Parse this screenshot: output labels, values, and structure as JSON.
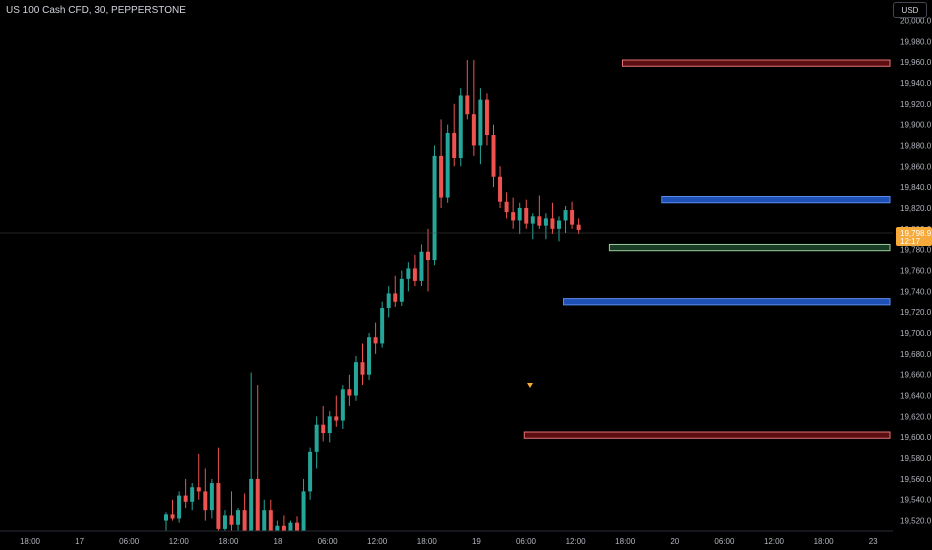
{
  "header": {
    "title": "US 100 Cash CFD, 30, PEPPERSTONE",
    "currency": "USD"
  },
  "colors": {
    "background": "#000000",
    "up": "#26a69a",
    "down": "#ef5350",
    "axis_text": "#b2b5be",
    "red_zone_fill": "#5c0f12",
    "red_zone_border": "#e57373",
    "blue_zone_fill": "#1e4fb4",
    "blue_zone_border": "#5b8def",
    "green_zone_fill": "#183d24",
    "green_zone_border": "#9ccc9e",
    "price_badge": "#f7a93a"
  },
  "price_badge": {
    "price": "19,798.9",
    "countdown": "12:17"
  },
  "chart_data": {
    "type": "candlestick",
    "title": "US 100 Cash CFD, 30, PEPPERSTONE",
    "ylim": [
      19510,
      20010
    ],
    "y_ticks": [
      "19,520.0",
      "19,540.0",
      "19,560.0",
      "19,580.0",
      "19,600.0",
      "19,620.0",
      "19,640.0",
      "19,660.0",
      "19,680.0",
      "19,700.0",
      "19,720.0",
      "19,740.0",
      "19,760.0",
      "19,780.0",
      "19,800.0",
      "19,820.0",
      "19,840.0",
      "19,860.0",
      "19,880.0",
      "19,900.0",
      "19,920.0",
      "19,940.0",
      "19,960.0",
      "19,980.0",
      "20,000.0"
    ],
    "x_ticks": [
      "18:00",
      "17",
      "06:00",
      "12:00",
      "18:00",
      "18",
      "06:00",
      "12:00",
      "18:00",
      "19",
      "06:00",
      "12:00",
      "18:00",
      "20",
      "06:00",
      "12:00",
      "18:00",
      "23"
    ],
    "last_price": 19798.9,
    "zones": [
      {
        "kind": "red",
        "from_bar": 70,
        "to_bar": 118,
        "top": 19962,
        "bottom": 19956
      },
      {
        "kind": "blue",
        "from_bar": 76,
        "to_bar": 118,
        "top": 19831,
        "bottom": 19825
      },
      {
        "kind": "green",
        "from_bar": 68,
        "to_bar": 118,
        "top": 19785,
        "bottom": 19779
      },
      {
        "kind": "blue",
        "from_bar": 61,
        "to_bar": 118,
        "top": 19733,
        "bottom": 19727
      },
      {
        "kind": "red",
        "from_bar": 55,
        "to_bar": 118,
        "top": 19605,
        "bottom": 19599
      }
    ],
    "candles": [
      [
        19520,
        19528,
        19510,
        19526
      ],
      [
        19526,
        19540,
        19520,
        19522
      ],
      [
        19522,
        19548,
        19518,
        19544
      ],
      [
        19544,
        19560,
        19532,
        19538
      ],
      [
        19538,
        19556,
        19530,
        19552
      ],
      [
        19552,
        19584,
        19540,
        19548
      ],
      [
        19548,
        19570,
        19520,
        19530
      ],
      [
        19530,
        19560,
        19522,
        19556
      ],
      [
        19556,
        19590,
        19500,
        19512
      ],
      [
        19512,
        19530,
        19500,
        19525
      ],
      [
        19525,
        19548,
        19510,
        19516
      ],
      [
        19516,
        19532,
        19508,
        19530
      ],
      [
        19530,
        19546,
        19500,
        19505
      ],
      [
        19505,
        19662,
        19500,
        19560
      ],
      [
        19560,
        19650,
        19500,
        19508
      ],
      [
        19508,
        19540,
        19500,
        19530
      ],
      [
        19530,
        19540,
        19500,
        19510
      ],
      [
        19510,
        19520,
        19500,
        19515
      ],
      [
        19515,
        19525,
        19500,
        19505
      ],
      [
        19505,
        19520,
        19500,
        19518
      ],
      [
        19518,
        19524,
        19500,
        19510
      ],
      [
        19510,
        19560,
        19505,
        19548
      ],
      [
        19548,
        19590,
        19540,
        19586
      ],
      [
        19586,
        19620,
        19570,
        19612
      ],
      [
        19612,
        19630,
        19596,
        19604
      ],
      [
        19604,
        19625,
        19595,
        19620
      ],
      [
        19620,
        19640,
        19610,
        19616
      ],
      [
        19616,
        19650,
        19608,
        19646
      ],
      [
        19646,
        19660,
        19630,
        19640
      ],
      [
        19640,
        19678,
        19635,
        19672
      ],
      [
        19672,
        19690,
        19650,
        19660
      ],
      [
        19660,
        19700,
        19655,
        19696
      ],
      [
        19696,
        19710,
        19680,
        19690
      ],
      [
        19690,
        19730,
        19686,
        19724
      ],
      [
        19724,
        19745,
        19715,
        19738
      ],
      [
        19738,
        19755,
        19725,
        19730
      ],
      [
        19730,
        19760,
        19726,
        19752
      ],
      [
        19752,
        19768,
        19740,
        19762
      ],
      [
        19762,
        19775,
        19745,
        19750
      ],
      [
        19750,
        19785,
        19745,
        19778
      ],
      [
        19778,
        19800,
        19740,
        19770
      ],
      [
        19770,
        19880,
        19765,
        19870
      ],
      [
        19870,
        19905,
        19820,
        19830
      ],
      [
        19830,
        19900,
        19825,
        19892
      ],
      [
        19892,
        19920,
        19860,
        19868
      ],
      [
        19868,
        19935,
        19860,
        19928
      ],
      [
        19928,
        19962,
        19905,
        19910
      ],
      [
        19910,
        19962,
        19870,
        19880
      ],
      [
        19880,
        19935,
        19862,
        19924
      ],
      [
        19924,
        19930,
        19880,
        19890
      ],
      [
        19890,
        19900,
        19840,
        19850
      ],
      [
        19850,
        19860,
        19820,
        19826
      ],
      [
        19826,
        19835,
        19810,
        19816
      ],
      [
        19816,
        19830,
        19800,
        19808
      ],
      [
        19808,
        19825,
        19795,
        19820
      ],
      [
        19820,
        19828,
        19800,
        19805
      ],
      [
        19805,
        19815,
        19790,
        19812
      ],
      [
        19812,
        19832,
        19800,
        19803
      ],
      [
        19803,
        19815,
        19790,
        19810
      ],
      [
        19810,
        19825,
        19795,
        19800
      ],
      [
        19800,
        19812,
        19788,
        19808
      ],
      [
        19808,
        19822,
        19796,
        19818
      ],
      [
        19818,
        19826,
        19800,
        19804
      ],
      [
        19804,
        19810,
        19795,
        19798.9
      ]
    ]
  }
}
